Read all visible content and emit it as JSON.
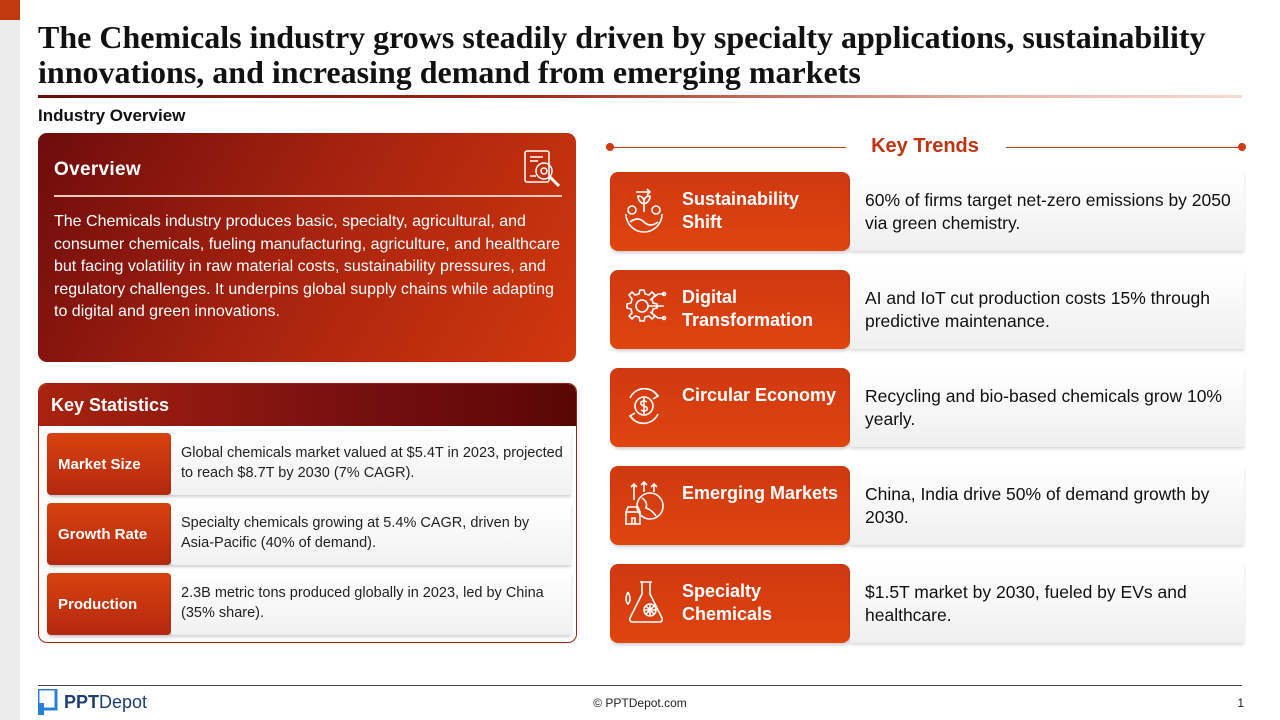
{
  "title": "The Chemicals industry grows steadily driven by specialty applications, sustainability innovations, and increasing demand from emerging markets",
  "section_label": "Industry Overview",
  "overview": {
    "heading": "Overview",
    "icon": "magnifier-document-icon",
    "body": "The Chemicals industry produces basic, specialty, agricultural, and consumer chemicals, fueling manufacturing, agriculture, and healthcare but facing volatility in raw material costs, sustainability pressures, and regulatory challenges. It underpins global supply chains while adapting to digital and green innovations."
  },
  "key_statistics": {
    "heading": "Key Statistics",
    "rows": [
      {
        "label": "Market Size",
        "value": "Global chemicals market valued at $5.4T in 2023, projected to reach $8.7T by 2030 (7% CAGR)."
      },
      {
        "label": "Growth Rate",
        "value": "Specialty chemicals growing at 5.4% CAGR, driven by Asia-Pacific (40% of demand)."
      },
      {
        "label": "Production",
        "value": "2.3B metric tons produced globally in 2023, led by China (35% share)."
      }
    ]
  },
  "key_trends": {
    "heading": "Key Trends",
    "items": [
      {
        "name": "Sustainability Shift",
        "icon": "earth-growth-icon",
        "desc": "60% of firms target net-zero emissions by 2050 via green chemistry."
      },
      {
        "name": "Digital Transformation",
        "icon": "gear-circuit-icon",
        "desc": "AI and IoT cut production costs 15% through predictive maintenance."
      },
      {
        "name": "Circular Economy",
        "icon": "circular-dollar-icon",
        "desc": "Recycling and bio-based chemicals grow 10% yearly."
      },
      {
        "name": "Emerging Markets",
        "icon": "market-globe-icon",
        "desc": "China, India drive 50% of demand growth by 2030."
      },
      {
        "name": "Specialty Chemicals",
        "icon": "flask-icon",
        "desc": "$1.5T market by 2030, fueled by EVs and healthcare."
      }
    ]
  },
  "footer": {
    "logo_ppt": "PPT",
    "logo_depot": "Depot",
    "copyright": "© PPTDepot.com",
    "page": "1"
  },
  "colors": {
    "accent": "#d23a12",
    "dark_red": "#6e0c0c",
    "logo_blue": "#1d3f72"
  }
}
